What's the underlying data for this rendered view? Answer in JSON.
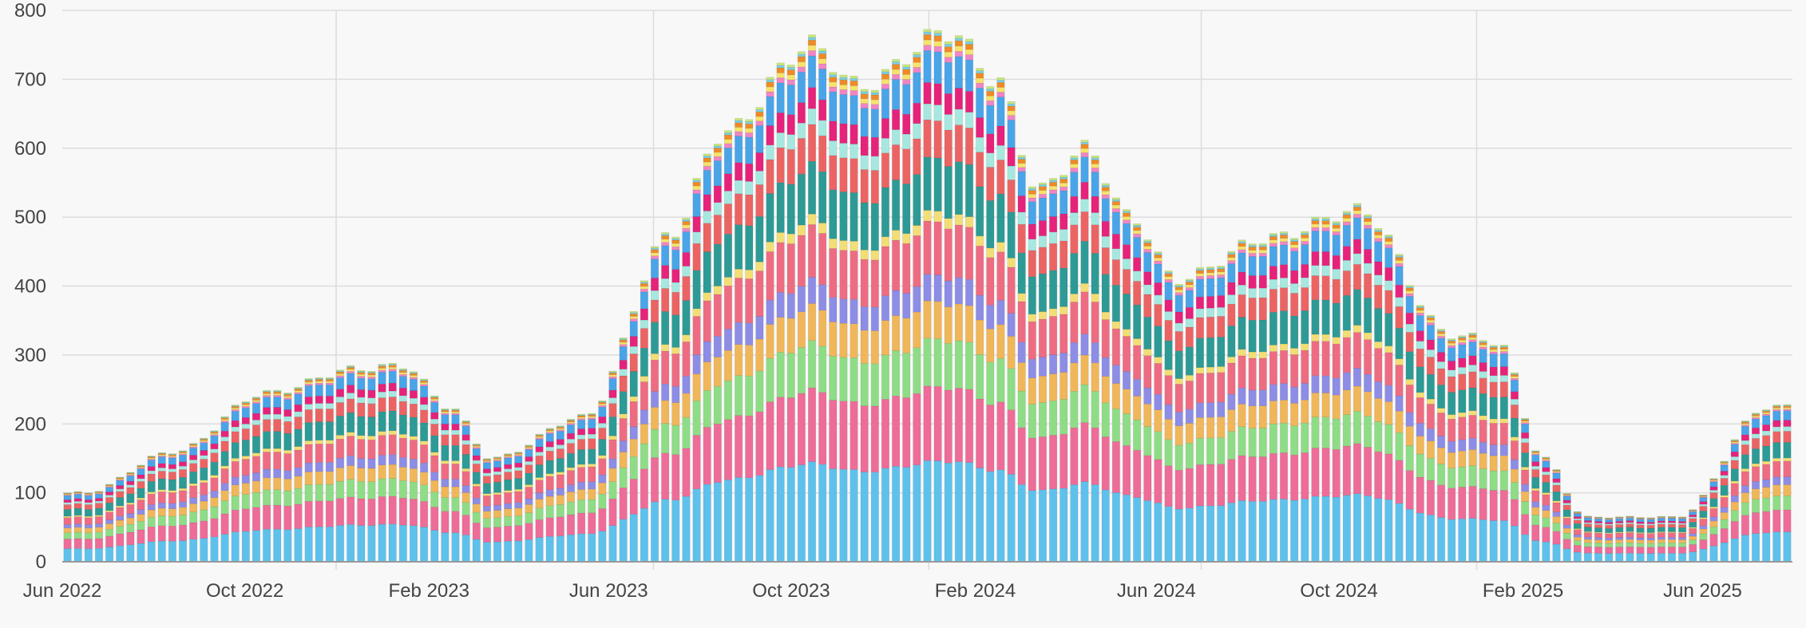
{
  "chart_data": {
    "type": "bar",
    "stacked": true,
    "grid": true,
    "ylim": [
      0,
      800
    ],
    "yticks": [
      "0",
      "100",
      "200",
      "300",
      "400",
      "500",
      "600",
      "700",
      "800"
    ],
    "xtick_labels": [
      "Jun 2022",
      "Oct 2022",
      "Feb 2023",
      "Jun 2023",
      "Oct 2023",
      "Feb 2024",
      "Jun 2024",
      "Oct 2024",
      "Feb 2025",
      "Jun 2025"
    ],
    "x_start": "2022-06-01",
    "x_end": "2025-07-31",
    "period": "weekly",
    "weeks": 165,
    "totals_at_months": [
      {
        "month": "2022-06",
        "total": 100
      },
      {
        "month": "2022-08",
        "total": 160
      },
      {
        "month": "2022-10",
        "total": 245
      },
      {
        "month": "2022-12",
        "total": 280
      },
      {
        "month": "2023-01",
        "total": 285
      },
      {
        "month": "2023-02",
        "total": 225
      },
      {
        "month": "2023-03",
        "total": 150
      },
      {
        "month": "2023-05",
        "total": 210
      },
      {
        "month": "2023-07",
        "total": 480
      },
      {
        "month": "2023-08",
        "total": 620
      },
      {
        "month": "2023-10",
        "total": 750
      },
      {
        "month": "2023-11",
        "total": 690
      },
      {
        "month": "2024-01",
        "total": 770
      },
      {
        "month": "2024-02",
        "total": 700
      },
      {
        "month": "2024-03",
        "total": 540
      },
      {
        "month": "2024-04",
        "total": 600
      },
      {
        "month": "2024-05",
        "total": 500
      },
      {
        "month": "2024-06",
        "total": 410
      },
      {
        "month": "2024-08",
        "total": 470
      },
      {
        "month": "2024-10",
        "total": 510
      },
      {
        "month": "2024-12",
        "total": 330
      },
      {
        "month": "2025-01",
        "total": 320
      },
      {
        "month": "2025-02",
        "total": 150
      },
      {
        "month": "2025-03",
        "total": 65
      },
      {
        "month": "2025-05",
        "total": 65
      },
      {
        "month": "2025-07",
        "total": 225
      }
    ],
    "series_colors": [
      "#5ec1ec",
      "#ee6c98",
      "#8fdc86",
      "#f0b65a",
      "#8d8de6",
      "#ee6c82",
      "#f2de74",
      "#2e9a95",
      "#eb6464",
      "#a6e8e0",
      "#e5237a",
      "#4aa4e8",
      "#f085c4",
      "#f6e36c",
      "#ef8a26",
      "#7bcfe3",
      "#c7e77a"
    ],
    "series_share": [
      0.19,
      0.14,
      0.09,
      0.07,
      0.05,
      0.1,
      0.02,
      0.1,
      0.07,
      0.03,
      0.04,
      0.06,
      0.01,
      0.01,
      0.01,
      0.005,
      0.005
    ]
  }
}
